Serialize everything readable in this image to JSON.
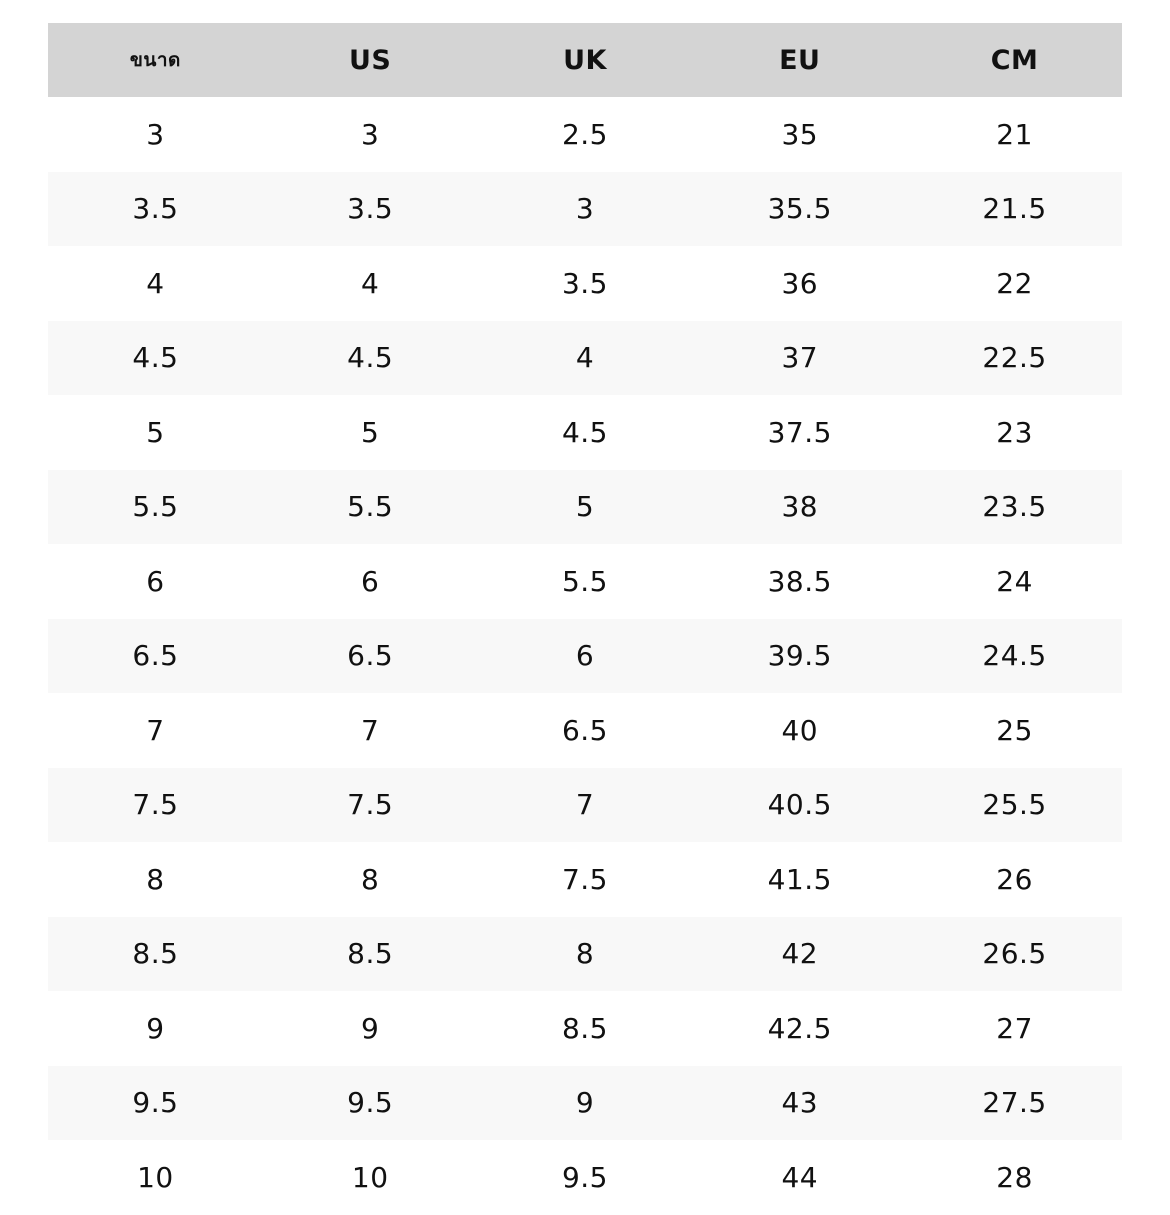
{
  "table": {
    "header": [
      "ขนาด",
      "US",
      "UK",
      "EU",
      "CM"
    ],
    "rows": [
      [
        "3",
        "3",
        "2.5",
        "35",
        "21"
      ],
      [
        "3.5",
        "3.5",
        "3",
        "35.5",
        "21.5"
      ],
      [
        "4",
        "4",
        "3.5",
        "36",
        "22"
      ],
      [
        "4.5",
        "4.5",
        "4",
        "37",
        "22.5"
      ],
      [
        "5",
        "5",
        "4.5",
        "37.5",
        "23"
      ],
      [
        "5.5",
        "5.5",
        "5",
        "38",
        "23.5"
      ],
      [
        "6",
        "6",
        "5.5",
        "38.5",
        "24"
      ],
      [
        "6.5",
        "6.5",
        "6",
        "39.5",
        "24.5"
      ],
      [
        "7",
        "7",
        "6.5",
        "40",
        "25"
      ],
      [
        "7.5",
        "7.5",
        "7",
        "40.5",
        "25.5"
      ],
      [
        "8",
        "8",
        "7.5",
        "41.5",
        "26"
      ],
      [
        "8.5",
        "8.5",
        "8",
        "42",
        "26.5"
      ],
      [
        "9",
        "9",
        "8.5",
        "42.5",
        "27"
      ],
      [
        "9.5",
        "9.5",
        "9",
        "43",
        "27.5"
      ],
      [
        "10",
        "10",
        "9.5",
        "44",
        "28"
      ]
    ]
  }
}
